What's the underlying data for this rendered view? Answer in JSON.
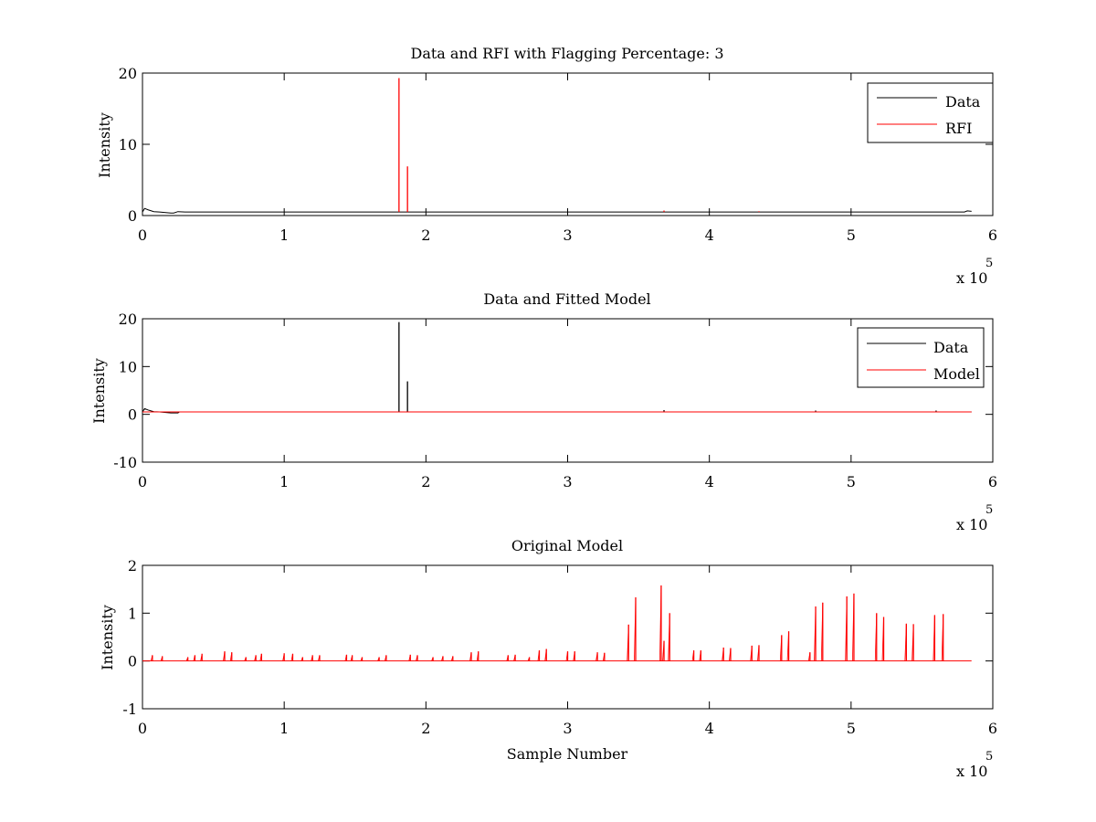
{
  "figure": {
    "background": "#ffffff",
    "colors": {
      "data": "#000000",
      "rfi": "#ff0000",
      "model": "#ff0000"
    }
  },
  "chart_data": [
    {
      "type": "line",
      "title": "Data and RFI with Flagging Percentage: 3",
      "xlabel": "",
      "ylabel": "Intensity",
      "xlim": [
        0,
        600000
      ],
      "ylim": [
        0,
        20
      ],
      "xticks": [
        0,
        1,
        2,
        3,
        4,
        5,
        6
      ],
      "yticks": [
        0,
        10,
        20
      ],
      "x_exponent_label": "x 10",
      "x_exponent": "5",
      "legend": {
        "placement": "top-right",
        "entries": [
          "Data",
          "RFI"
        ]
      },
      "series": [
        {
          "name": "Data",
          "color": "#000000",
          "baseline": 0.5,
          "bumps": [
            [
              0,
              0.5
            ],
            [
              1500,
              1.0
            ],
            [
              4000,
              0.8
            ],
            [
              8000,
              0.55
            ],
            [
              12000,
              0.5
            ],
            [
              20000,
              0.35
            ],
            [
              22000,
              0.35
            ],
            [
              25000,
              0.55
            ],
            [
              30000,
              0.5
            ],
            [
              580000,
              0.5
            ],
            [
              582000,
              0.65
            ],
            [
              585000,
              0.6
            ]
          ],
          "spikes": []
        },
        {
          "name": "RFI",
          "color": "#ff0000",
          "spikes": [
            [
              181000,
              19.3
            ],
            [
              187000,
              6.9
            ],
            [
              368000,
              0.7
            ],
            [
              435000,
              0.6
            ]
          ]
        }
      ]
    },
    {
      "type": "line",
      "title": "Data and Fitted Model",
      "xlabel": "",
      "ylabel": "Intensity",
      "xlim": [
        0,
        600000
      ],
      "ylim": [
        -10,
        20
      ],
      "xticks": [
        0,
        1,
        2,
        3,
        4,
        5,
        6
      ],
      "yticks": [
        -10,
        0,
        10,
        20
      ],
      "x_exponent_label": "x 10",
      "x_exponent": "5",
      "legend": {
        "placement": "top-right",
        "entries": [
          "Data",
          "Model"
        ]
      },
      "series": [
        {
          "name": "Data",
          "color": "#000000",
          "baseline": 0.5,
          "bumps": [
            [
              0,
              0.5
            ],
            [
              1500,
              1.2
            ],
            [
              4000,
              0.9
            ],
            [
              8000,
              0.55
            ],
            [
              12000,
              0.5
            ],
            [
              20000,
              0.3
            ],
            [
              25000,
              0.3
            ],
            [
              26000,
              0.5
            ],
            [
              580000,
              0.5
            ],
            [
              585000,
              0.5
            ]
          ],
          "spikes": [
            [
              181000,
              19.3
            ],
            [
              187000,
              6.9
            ],
            [
              368000,
              0.9
            ],
            [
              475000,
              0.8
            ],
            [
              560000,
              0.8
            ]
          ]
        },
        {
          "name": "Model",
          "color": "#ff0000",
          "baseline": 0.5,
          "spikes": []
        }
      ]
    },
    {
      "type": "line",
      "title": "Original Model",
      "xlabel": "Sample Number",
      "ylabel": "Intensity",
      "xlim": [
        0,
        600000
      ],
      "ylim": [
        -1,
        2
      ],
      "xticks": [
        0,
        1,
        2,
        3,
        4,
        5,
        6
      ],
      "yticks": [
        -1,
        0,
        1,
        2
      ],
      "x_exponent_label": "x 10",
      "x_exponent": "5",
      "series": [
        {
          "name": "",
          "color": "#ff0000",
          "baseline": 0,
          "spikes": [
            [
              7000,
              0.12
            ],
            [
              14000,
              0.1
            ],
            [
              32000,
              0.08
            ],
            [
              37000,
              0.12
            ],
            [
              42000,
              0.15
            ],
            [
              58000,
              0.2
            ],
            [
              63000,
              0.18
            ],
            [
              73000,
              0.08
            ],
            [
              80000,
              0.12
            ],
            [
              84000,
              0.15
            ],
            [
              100000,
              0.16
            ],
            [
              106000,
              0.15
            ],
            [
              113000,
              0.08
            ],
            [
              120000,
              0.12
            ],
            [
              125000,
              0.12
            ],
            [
              144000,
              0.13
            ],
            [
              148000,
              0.12
            ],
            [
              155000,
              0.08
            ],
            [
              167000,
              0.08
            ],
            [
              172000,
              0.12
            ],
            [
              189000,
              0.13
            ],
            [
              194000,
              0.12
            ],
            [
              205000,
              0.08
            ],
            [
              212000,
              0.1
            ],
            [
              219000,
              0.1
            ],
            [
              232000,
              0.18
            ],
            [
              237000,
              0.2
            ],
            [
              258000,
              0.12
            ],
            [
              263000,
              0.13
            ],
            [
              273000,
              0.08
            ],
            [
              280000,
              0.22
            ],
            [
              285000,
              0.25
            ],
            [
              300000,
              0.2
            ],
            [
              305000,
              0.2
            ],
            [
              321000,
              0.18
            ],
            [
              326000,
              0.17
            ],
            [
              343000,
              0.76
            ],
            [
              348000,
              1.33
            ],
            [
              366000,
              1.58
            ],
            [
              368000,
              0.42
            ],
            [
              372000,
              1.0
            ],
            [
              389000,
              0.22
            ],
            [
              394000,
              0.22
            ],
            [
              410000,
              0.28
            ],
            [
              415000,
              0.27
            ],
            [
              430000,
              0.32
            ],
            [
              435000,
              0.33
            ],
            [
              451000,
              0.54
            ],
            [
              456000,
              0.62
            ],
            [
              471000,
              0.18
            ],
            [
              475000,
              1.14
            ],
            [
              480000,
              1.22
            ],
            [
              497000,
              1.35
            ],
            [
              502000,
              1.41
            ],
            [
              518000,
              1.0
            ],
            [
              523000,
              0.92
            ],
            [
              539000,
              0.78
            ],
            [
              544000,
              0.77
            ],
            [
              559000,
              0.96
            ],
            [
              565000,
              0.98
            ]
          ]
        }
      ]
    }
  ]
}
